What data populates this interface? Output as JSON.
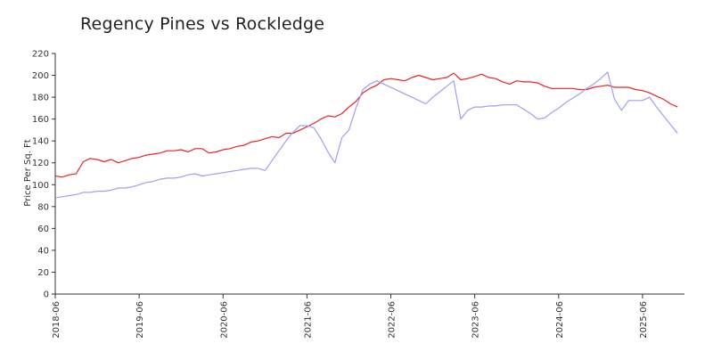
{
  "chart_data": {
    "type": "line",
    "title": "Regency Pines vs Rockledge",
    "xlabel": "",
    "ylabel": "Price Per Sq. Ft",
    "ylim": [
      0,
      220
    ],
    "yticks": [
      0,
      20,
      40,
      60,
      80,
      100,
      120,
      140,
      160,
      180,
      200,
      220
    ],
    "xlim": [
      "2018-06",
      "2025-12"
    ],
    "xticks": [
      "2018-06",
      "2019-06",
      "2020-06",
      "2021-06",
      "2022-06",
      "2023-06",
      "2024-06",
      "2025-06"
    ],
    "grid": false,
    "legend": "none",
    "series": [
      {
        "color": "#e8232a",
        "points": [
          [
            "2018-06",
            108
          ],
          [
            "2018-07",
            107
          ],
          [
            "2018-08",
            109
          ],
          [
            "2018-09",
            110
          ],
          [
            "2018-10",
            121
          ],
          [
            "2018-11",
            124
          ],
          [
            "2018-12",
            123
          ],
          [
            "2019-01",
            121
          ],
          [
            "2019-02",
            123
          ],
          [
            "2019-03",
            120
          ],
          [
            "2019-04",
            122
          ],
          [
            "2019-05",
            124
          ],
          [
            "2019-06",
            125
          ],
          [
            "2019-07",
            127
          ],
          [
            "2019-08",
            128
          ],
          [
            "2019-09",
            129
          ],
          [
            "2019-10",
            131
          ],
          [
            "2019-11",
            131
          ],
          [
            "2019-12",
            132
          ],
          [
            "2020-01",
            130
          ],
          [
            "2020-02",
            133
          ],
          [
            "2020-03",
            133
          ],
          [
            "2020-04",
            129
          ],
          [
            "2020-05",
            130
          ],
          [
            "2020-06",
            132
          ],
          [
            "2020-07",
            133
          ],
          [
            "2020-08",
            135
          ],
          [
            "2020-09",
            136
          ],
          [
            "2020-10",
            139
          ],
          [
            "2020-11",
            140
          ],
          [
            "2020-12",
            142
          ],
          [
            "2021-01",
            144
          ],
          [
            "2021-02",
            143
          ],
          [
            "2021-03",
            147
          ],
          [
            "2021-04",
            147
          ],
          [
            "2021-05",
            150
          ],
          [
            "2021-06",
            153
          ],
          [
            "2021-07",
            156
          ],
          [
            "2021-08",
            160
          ],
          [
            "2021-09",
            163
          ],
          [
            "2021-10",
            162
          ],
          [
            "2021-11",
            165
          ],
          [
            "2021-12",
            171
          ],
          [
            "2022-01",
            176
          ],
          [
            "2022-02",
            184
          ],
          [
            "2022-03",
            188
          ],
          [
            "2022-04",
            191
          ],
          [
            "2022-05",
            196
          ],
          [
            "2022-06",
            197
          ],
          [
            "2022-07",
            196
          ],
          [
            "2022-08",
            195
          ],
          [
            "2022-09",
            198
          ],
          [
            "2022-10",
            200
          ],
          [
            "2022-11",
            198
          ],
          [
            "2022-12",
            196
          ],
          [
            "2023-01",
            197
          ],
          [
            "2023-02",
            198
          ],
          [
            "2023-03",
            202
          ],
          [
            "2023-04",
            196
          ],
          [
            "2023-05",
            197
          ],
          [
            "2023-06",
            199
          ],
          [
            "2023-07",
            201
          ],
          [
            "2023-08",
            198
          ],
          [
            "2023-09",
            197
          ],
          [
            "2023-10",
            194
          ],
          [
            "2023-11",
            192
          ],
          [
            "2023-12",
            195
          ],
          [
            "2024-01",
            194
          ],
          [
            "2024-02",
            194
          ],
          [
            "2024-03",
            193
          ],
          [
            "2024-04",
            190
          ],
          [
            "2024-05",
            188
          ],
          [
            "2024-06",
            188
          ],
          [
            "2024-07",
            188
          ],
          [
            "2024-08",
            188
          ],
          [
            "2024-09",
            187
          ],
          [
            "2024-10",
            187
          ],
          [
            "2024-11",
            189
          ],
          [
            "2024-12",
            190
          ],
          [
            "2025-01",
            191
          ],
          [
            "2025-02",
            189
          ],
          [
            "2025-03",
            189
          ],
          [
            "2025-04",
            189
          ],
          [
            "2025-05",
            187
          ],
          [
            "2025-06",
            186
          ],
          [
            "2025-07",
            184
          ],
          [
            "2025-08",
            181
          ],
          [
            "2025-09",
            178
          ],
          [
            "2025-10",
            174
          ],
          [
            "2025-11",
            171
          ]
        ]
      },
      {
        "color": "#9f9ff2",
        "points": [
          [
            "2018-06",
            88
          ],
          [
            "2018-07",
            89
          ],
          [
            "2018-08",
            90
          ],
          [
            "2018-09",
            91
          ],
          [
            "2018-10",
            93
          ],
          [
            "2018-11",
            93
          ],
          [
            "2018-12",
            94
          ],
          [
            "2019-01",
            94
          ],
          [
            "2019-02",
            95
          ],
          [
            "2019-03",
            97
          ],
          [
            "2019-04",
            97
          ],
          [
            "2019-05",
            98
          ],
          [
            "2019-06",
            100
          ],
          [
            "2019-07",
            102
          ],
          [
            "2019-08",
            103
          ],
          [
            "2019-09",
            105
          ],
          [
            "2019-10",
            106
          ],
          [
            "2019-11",
            106
          ],
          [
            "2019-12",
            107
          ],
          [
            "2020-01",
            109
          ],
          [
            "2020-02",
            110
          ],
          [
            "2020-03",
            108
          ],
          [
            "2020-04",
            109
          ],
          [
            "2020-05",
            110
          ],
          [
            "2020-06",
            111
          ],
          [
            "2020-07",
            112
          ],
          [
            "2020-08",
            113
          ],
          [
            "2020-09",
            114
          ],
          [
            "2020-10",
            115
          ],
          [
            "2020-11",
            115
          ],
          [
            "2020-12",
            113
          ],
          [
            "2021-01",
            122
          ],
          [
            "2021-02",
            131
          ],
          [
            "2021-03",
            140
          ],
          [
            "2021-04",
            148
          ],
          [
            "2021-05",
            154
          ],
          [
            "2021-06",
            154
          ],
          [
            "2021-07",
            152
          ],
          [
            "2021-08",
            142
          ],
          [
            "2021-09",
            130
          ],
          [
            "2021-10",
            120
          ],
          [
            "2021-11",
            143
          ],
          [
            "2021-12",
            150
          ],
          [
            "2022-01",
            170
          ],
          [
            "2022-02",
            187
          ],
          [
            "2022-03",
            192
          ],
          [
            "2022-04",
            195
          ],
          [
            "2022-05",
            192
          ],
          [
            "2022-06",
            189
          ],
          [
            "2022-07",
            186
          ],
          [
            "2022-08",
            183
          ],
          [
            "2022-09",
            180
          ],
          [
            "2022-10",
            177
          ],
          [
            "2022-11",
            174
          ],
          [
            "2022-12",
            180
          ],
          [
            "2023-01",
            185
          ],
          [
            "2023-02",
            190
          ],
          [
            "2023-03",
            195
          ],
          [
            "2023-04",
            160
          ],
          [
            "2023-05",
            168
          ],
          [
            "2023-06",
            171
          ],
          [
            "2023-07",
            171
          ],
          [
            "2023-08",
            172
          ],
          [
            "2023-09",
            172
          ],
          [
            "2023-10",
            173
          ],
          [
            "2023-11",
            173
          ],
          [
            "2023-12",
            173
          ],
          [
            "2024-01",
            169
          ],
          [
            "2024-02",
            165
          ],
          [
            "2024-03",
            160
          ],
          [
            "2024-04",
            161
          ],
          [
            "2024-05",
            166
          ],
          [
            "2024-06",
            170
          ],
          [
            "2024-07",
            175
          ],
          [
            "2024-08",
            179
          ],
          [
            "2024-09",
            183
          ],
          [
            "2024-10",
            188
          ],
          [
            "2024-11",
            192
          ],
          [
            "2024-12",
            197
          ],
          [
            "2025-01",
            203
          ],
          [
            "2025-02",
            178
          ],
          [
            "2025-03",
            168
          ],
          [
            "2025-04",
            177
          ],
          [
            "2025-05",
            177
          ],
          [
            "2025-06",
            177
          ],
          [
            "2025-07",
            180
          ],
          [
            "2025-08",
            171
          ],
          [
            "2025-09",
            163
          ],
          [
            "2025-10",
            155
          ],
          [
            "2025-11",
            147
          ]
        ]
      }
    ]
  }
}
